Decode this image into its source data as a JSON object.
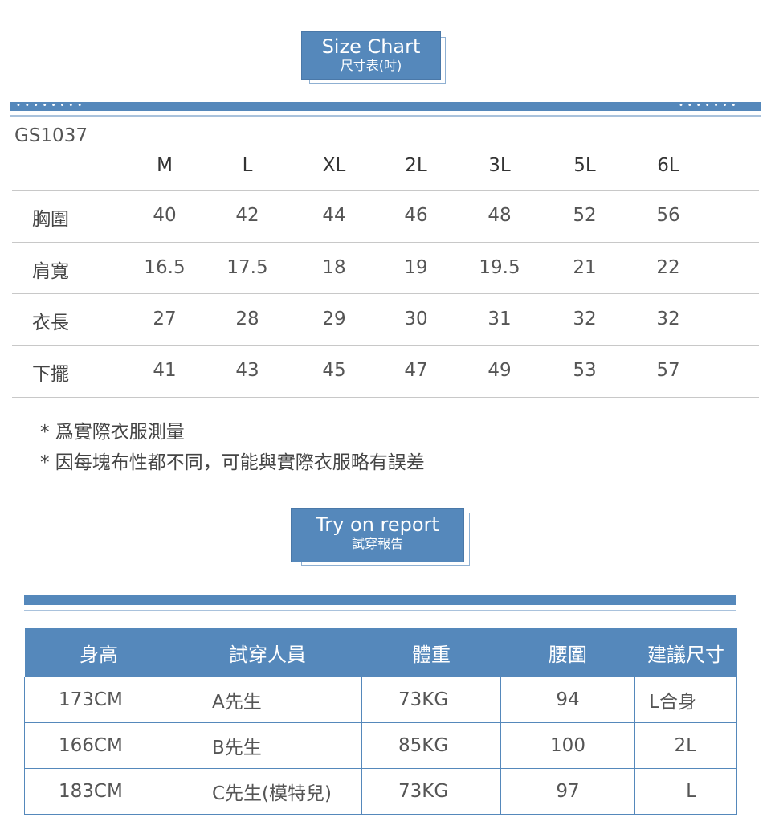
{
  "size_chart": {
    "title": "Size Chart",
    "subtitle": "尺寸表(吋)",
    "model": "GS1037",
    "sizes": [
      "M",
      "L",
      "XL",
      "2L",
      "3L",
      "5L",
      "6L"
    ],
    "rows": [
      {
        "label": "胸圍",
        "values": [
          "40",
          "42",
          "44",
          "46",
          "48",
          "52",
          "56"
        ]
      },
      {
        "label": "肩寬",
        "values": [
          "16.5",
          "17.5",
          "18",
          "19",
          "19.5",
          "21",
          "22"
        ]
      },
      {
        "label": "衣長",
        "values": [
          "27",
          "28",
          "29",
          "30",
          "31",
          "32",
          "32"
        ]
      },
      {
        "label": "下擺",
        "values": [
          "41",
          "43",
          "45",
          "47",
          "49",
          "53",
          "57"
        ]
      }
    ],
    "notes": [
      "* 爲實際衣服測量",
      "* 因每塊布性都不同，可能與實際衣服略有誤差"
    ]
  },
  "try_on": {
    "title": "Try on report",
    "subtitle": "試穿報告",
    "headers": [
      "身高",
      "試穿人員",
      "體重",
      "腰圍",
      "建議尺寸"
    ],
    "rows": [
      [
        "173CM",
        "A先生",
        "73KG",
        "94",
        "L合身"
      ],
      [
        "166CM",
        "B先生",
        "85KG",
        "100",
        "2L"
      ],
      [
        "183CM",
        "C先生(模特兒)",
        "73KG",
        "97",
        "L"
      ]
    ]
  },
  "colors": {
    "accent": "#5588bb"
  }
}
